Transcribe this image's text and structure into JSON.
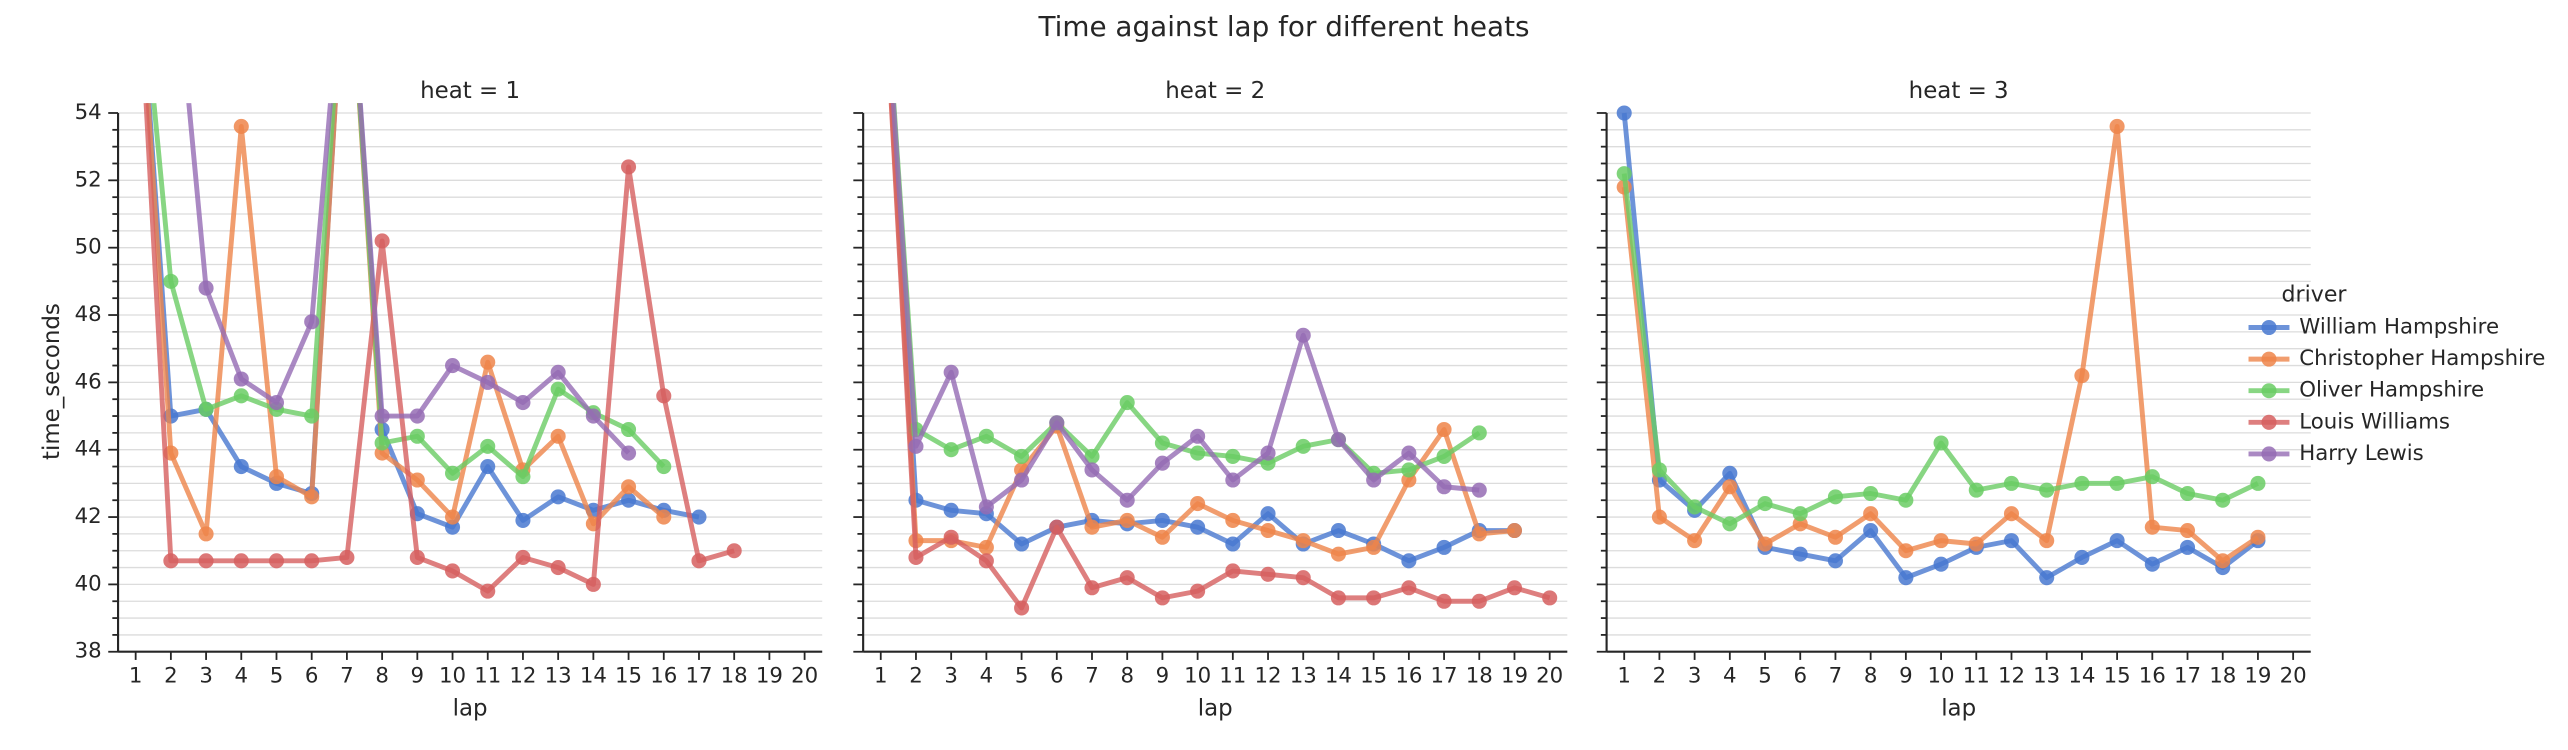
{
  "chart_data": {
    "type": "line",
    "title": "Time against lap for different heats",
    "xlabel": "lap",
    "ylabel": "time_seconds",
    "legend_title": "driver",
    "legend": "right",
    "grid": true,
    "categories": [
      "1",
      "2",
      "3",
      "4",
      "5",
      "6",
      "7",
      "8",
      "9",
      "10",
      "11",
      "12",
      "13",
      "14",
      "15",
      "16",
      "17",
      "18",
      "19",
      "20"
    ],
    "ylim": [
      38,
      54
    ],
    "yticks": [
      38,
      40,
      42,
      44,
      46,
      48,
      50,
      52,
      54
    ],
    "y_minor_ticks": [
      38.5,
      39,
      39.5,
      40.5,
      41,
      41.5,
      42.5,
      43,
      43.5,
      44.5,
      45,
      45.5,
      46.5,
      47,
      47.5,
      48.5,
      49,
      49.5,
      50.5,
      51,
      51.5,
      52.5,
      53,
      53.5
    ],
    "drivers": [
      {
        "name": "William Hampshire",
        "color": "#4878d0"
      },
      {
        "name": "Christopher Hampshire",
        "color": "#ee854a"
      },
      {
        "name": "Oliver Hampshire",
        "color": "#6acc64"
      },
      {
        "name": "Louis Williams",
        "color": "#d65f5f"
      },
      {
        "name": "Harry Lewis",
        "color": "#956cb4"
      }
    ],
    "facets": [
      {
        "title": "heat = 1",
        "series": [
          {
            "values": [
              60,
              45.0,
              45.2,
              43.5,
              43.0,
              42.7,
              60,
              44.6,
              42.1,
              41.7,
              43.5,
              41.9,
              42.6,
              42.2,
              42.5,
              42.2,
              42.0,
              null,
              null,
              null
            ]
          },
          {
            "values": [
              60,
              43.9,
              41.5,
              53.6,
              43.2,
              42.6,
              60,
              43.9,
              43.1,
              42.0,
              46.6,
              43.4,
              44.4,
              41.8,
              42.9,
              42.0,
              null,
              null,
              null,
              null
            ]
          },
          {
            "values": [
              60,
              49.0,
              45.2,
              45.6,
              45.2,
              45.0,
              60,
              44.2,
              44.4,
              43.3,
              44.1,
              43.2,
              45.8,
              45.1,
              44.6,
              43.5,
              null,
              null,
              null,
              null
            ]
          },
          {
            "values": [
              60,
              40.7,
              40.7,
              40.7,
              40.7,
              40.7,
              40.8,
              50.2,
              40.8,
              40.4,
              39.8,
              40.8,
              40.5,
              40.0,
              52.4,
              45.6,
              40.7,
              41.0,
              null,
              null
            ]
          },
          {
            "values": [
              null,
              60,
              48.8,
              46.1,
              45.4,
              47.8,
              60,
              45.0,
              45.0,
              46.5,
              46.0,
              45.4,
              46.3,
              45.0,
              43.9,
              null,
              null,
              null,
              null,
              null
            ]
          }
        ]
      },
      {
        "title": "heat = 2",
        "series": [
          {
            "values": [
              60,
              42.5,
              42.2,
              42.1,
              41.2,
              41.7,
              41.9,
              41.8,
              41.9,
              41.7,
              41.2,
              42.1,
              41.2,
              41.6,
              41.2,
              40.7,
              41.1,
              41.6,
              41.6,
              null
            ]
          },
          {
            "values": [
              60,
              41.3,
              41.3,
              41.1,
              43.4,
              44.7,
              41.7,
              41.9,
              41.4,
              42.4,
              41.9,
              41.6,
              41.3,
              40.9,
              41.1,
              43.1,
              44.6,
              41.5,
              41.6,
              null
            ]
          },
          {
            "values": [
              60,
              44.6,
              44.0,
              44.4,
              43.8,
              44.8,
              43.8,
              45.4,
              44.2,
              43.9,
              43.8,
              43.6,
              44.1,
              44.3,
              43.3,
              43.4,
              43.8,
              44.5,
              null,
              null
            ]
          },
          {
            "values": [
              60,
              40.8,
              41.4,
              40.7,
              39.3,
              41.7,
              39.9,
              40.2,
              39.6,
              39.8,
              40.4,
              40.3,
              40.2,
              39.6,
              39.6,
              39.9,
              39.5,
              39.5,
              39.9,
              39.6
            ]
          },
          {
            "values": [
              60,
              44.1,
              46.3,
              42.3,
              43.1,
              44.8,
              43.4,
              42.5,
              43.6,
              44.4,
              43.1,
              43.9,
              47.4,
              44.3,
              43.1,
              43.9,
              42.9,
              42.8,
              null,
              null
            ]
          }
        ]
      },
      {
        "title": "heat = 3",
        "series": [
          {
            "values": [
              54.0,
              43.1,
              42.2,
              43.3,
              41.1,
              40.9,
              40.7,
              41.6,
              40.2,
              40.6,
              41.1,
              41.3,
              40.2,
              40.8,
              41.3,
              40.6,
              41.1,
              40.5,
              41.3,
              null
            ]
          },
          {
            "values": [
              51.8,
              42.0,
              41.3,
              42.9,
              41.2,
              41.8,
              41.4,
              42.1,
              41.0,
              41.3,
              41.2,
              42.1,
              41.3,
              46.2,
              53.6,
              41.7,
              41.6,
              40.7,
              41.4,
              null
            ]
          },
          {
            "values": [
              52.2,
              43.4,
              42.3,
              41.8,
              42.4,
              42.1,
              42.6,
              42.7,
              42.5,
              44.2,
              42.8,
              43.0,
              42.8,
              43.0,
              43.0,
              43.2,
              42.7,
              42.5,
              43.0,
              null
            ]
          },
          {
            "values": [
              null,
              null,
              null,
              null,
              null,
              null,
              null,
              null,
              null,
              null,
              null,
              null,
              null,
              null,
              null,
              null,
              null,
              null,
              null,
              null
            ]
          },
          {
            "values": [
              null,
              null,
              null,
              null,
              null,
              null,
              null,
              null,
              null,
              null,
              null,
              null,
              null,
              null,
              null,
              null,
              null,
              null,
              null,
              null
            ]
          }
        ]
      }
    ]
  }
}
